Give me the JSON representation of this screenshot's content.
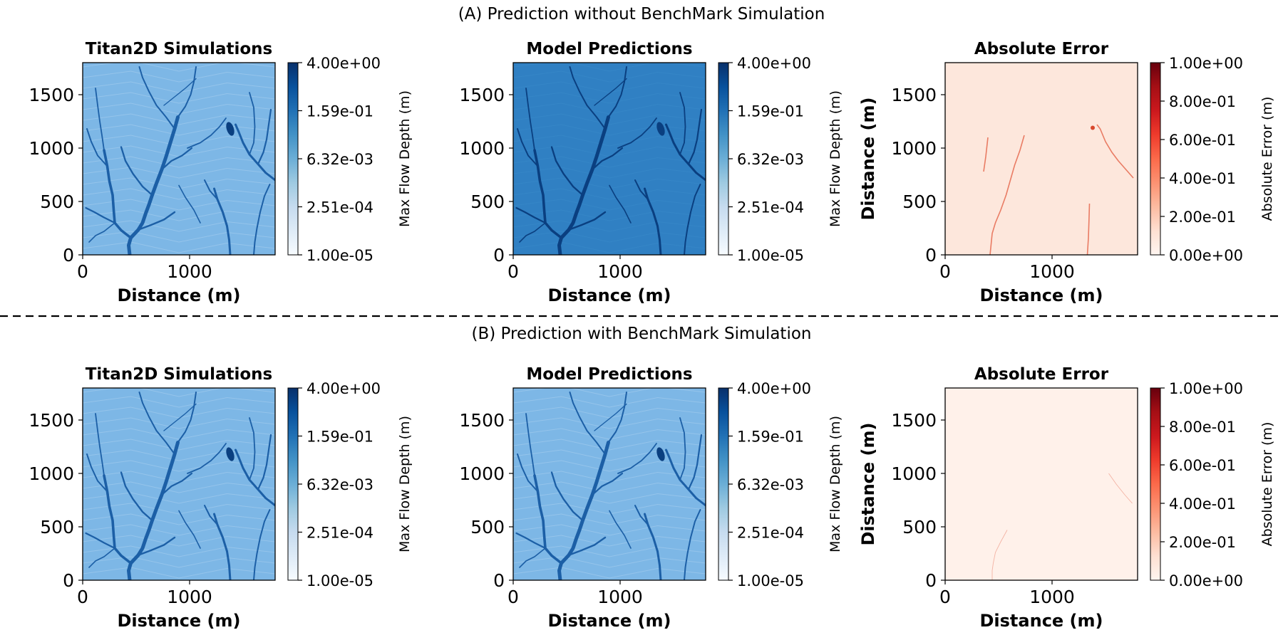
{
  "figure": {
    "rows": [
      {
        "title": "(A) Prediction without BenchMark Simulation"
      },
      {
        "title": "(B) Prediction with BenchMark Simulation"
      }
    ]
  },
  "colors": {
    "blues": [
      "#f7fbff",
      "#deebf7",
      "#c6dbef",
      "#9ecae1",
      "#6baed6",
      "#4292c6",
      "#2171b5",
      "#08519c",
      "#08306b"
    ],
    "reds": [
      "#fff5f0",
      "#fee0d2",
      "#fcbba1",
      "#fc9272",
      "#fb6a4a",
      "#ef3b2c",
      "#cb181d",
      "#a50f15",
      "#67000d"
    ],
    "titan_bg": "#7db7e6",
    "model_a_bg": "#3080c3",
    "model_b_bg": "#7db7e6",
    "channel": "#1c5fa6",
    "channel_dark": "#0a3f80",
    "error_bg_a": "#fde7dc",
    "error_bg_b": "#fff1ea",
    "error_line": "#e5694f"
  },
  "chart_data": [
    {
      "type": "heatmap",
      "row": "A",
      "title": "Titan2D Simulations",
      "xlabel": "Distance (m)",
      "ylabel": "",
      "xlim": [
        0,
        1800
      ],
      "ylim": [
        0,
        1800
      ],
      "xticks": [
        "0",
        "1000"
      ],
      "yticks": [
        "0",
        "500",
        "1000",
        "1500"
      ],
      "xtick_values": [
        0,
        1000
      ],
      "ytick_values": [
        0,
        500,
        1000,
        1500
      ],
      "colormap": "Blues",
      "colorbar_label": "Max Flow Depth (m)",
      "colorbar_scale": "log",
      "colorbar_ticks": [
        "4.00e+00",
        "1.59e-01",
        "6.32e-03",
        "2.51e-04",
        "1.00e-05"
      ]
    },
    {
      "type": "heatmap",
      "row": "A",
      "title": "Model Predictions",
      "xlabel": "Distance (m)",
      "ylabel": "",
      "xlim": [
        0,
        1800
      ],
      "ylim": [
        0,
        1800
      ],
      "xticks": [
        "0",
        "1000"
      ],
      "yticks": [
        "0",
        "500",
        "1000",
        "1500"
      ],
      "xtick_values": [
        0,
        1000
      ],
      "ytick_values": [
        0,
        500,
        1000,
        1500
      ],
      "colormap": "Blues",
      "colorbar_label": "Max Flow Depth (m)",
      "colorbar_scale": "log",
      "colorbar_ticks": [
        "4.00e+00",
        "1.59e-01",
        "6.32e-03",
        "2.51e-04",
        "1.00e-05"
      ]
    },
    {
      "type": "heatmap",
      "row": "A",
      "title": "Absolute Error",
      "xlabel": "Distance (m)",
      "ylabel": "Distance (m)",
      "xlim": [
        0,
        1800
      ],
      "ylim": [
        0,
        1800
      ],
      "xticks": [
        "0",
        "1000"
      ],
      "yticks": [
        "0",
        "500",
        "1000",
        "1500"
      ],
      "xtick_values": [
        0,
        1000
      ],
      "ytick_values": [
        0,
        500,
        1000,
        1500
      ],
      "colormap": "Reds",
      "colorbar_label": "Absolute Error (m)",
      "colorbar_scale": "linear",
      "colorbar_ticks": [
        "1.00e+00",
        "8.00e-01",
        "6.00e-01",
        "4.00e-01",
        "2.00e-01",
        "0.00e+00"
      ]
    },
    {
      "type": "heatmap",
      "row": "B",
      "title": "Titan2D Simulations",
      "xlabel": "Distance (m)",
      "ylabel": "",
      "xlim": [
        0,
        1800
      ],
      "ylim": [
        0,
        1800
      ],
      "xticks": [
        "0",
        "1000"
      ],
      "yticks": [
        "0",
        "500",
        "1000",
        "1500"
      ],
      "xtick_values": [
        0,
        1000
      ],
      "ytick_values": [
        0,
        500,
        1000,
        1500
      ],
      "colormap": "Blues",
      "colorbar_label": "Max Flow Depth (m)",
      "colorbar_scale": "log",
      "colorbar_ticks": [
        "4.00e+00",
        "1.59e-01",
        "6.32e-03",
        "2.51e-04",
        "1.00e-05"
      ]
    },
    {
      "type": "heatmap",
      "row": "B",
      "title": "Model Predictions",
      "xlabel": "Distance (m)",
      "ylabel": "",
      "xlim": [
        0,
        1800
      ],
      "ylim": [
        0,
        1800
      ],
      "xticks": [
        "0",
        "1000"
      ],
      "yticks": [
        "0",
        "500",
        "1000",
        "1500"
      ],
      "xtick_values": [
        0,
        1000
      ],
      "ytick_values": [
        0,
        500,
        1000,
        1500
      ],
      "colormap": "Blues",
      "colorbar_label": "Max Flow Depth (m)",
      "colorbar_scale": "log",
      "colorbar_ticks": [
        "4.00e+00",
        "1.59e-01",
        "6.32e-03",
        "2.51e-04",
        "1.00e-05"
      ]
    },
    {
      "type": "heatmap",
      "row": "B",
      "title": "Absolute Error",
      "xlabel": "Distance (m)",
      "ylabel": "Distance (m)",
      "xlim": [
        0,
        1800
      ],
      "ylim": [
        0,
        1800
      ],
      "xticks": [
        "0",
        "1000"
      ],
      "yticks": [
        "0",
        "500",
        "1000",
        "1500"
      ],
      "xtick_values": [
        0,
        1000
      ],
      "ytick_values": [
        0,
        500,
        1000,
        1500
      ],
      "colormap": "Reds",
      "colorbar_label": "Absolute Error (m)",
      "colorbar_scale": "linear",
      "colorbar_ticks": [
        "1.00e+00",
        "8.00e-01",
        "6.00e-01",
        "4.00e-01",
        "2.00e-01",
        "0.00e+00"
      ]
    }
  ]
}
